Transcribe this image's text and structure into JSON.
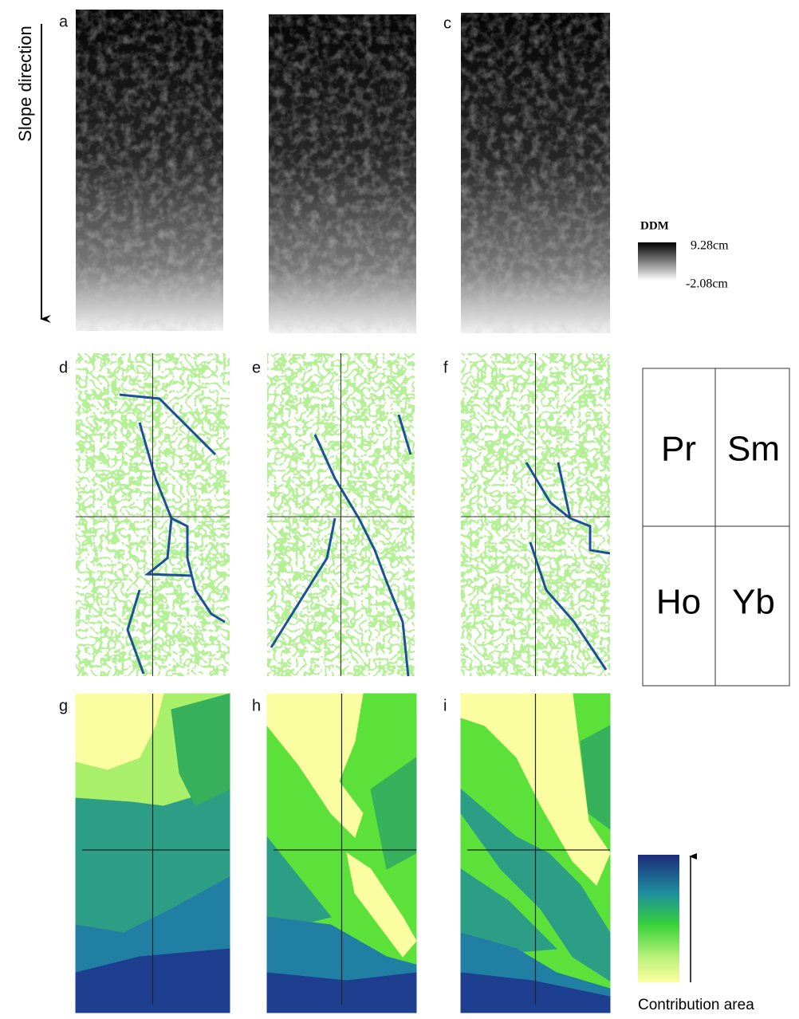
{
  "figure": {
    "slope_label": "Slope direction",
    "panel_labels": [
      "a",
      "c",
      "d",
      "e",
      "f",
      "g",
      "h",
      "i"
    ],
    "ddm_legend": {
      "title": "DDM",
      "max": "9.28cm",
      "min": "-2.08cm"
    },
    "species": [
      "Pr",
      "Sm",
      "Ho",
      "Yb"
    ],
    "contribution_label": "Contribution area"
  }
}
